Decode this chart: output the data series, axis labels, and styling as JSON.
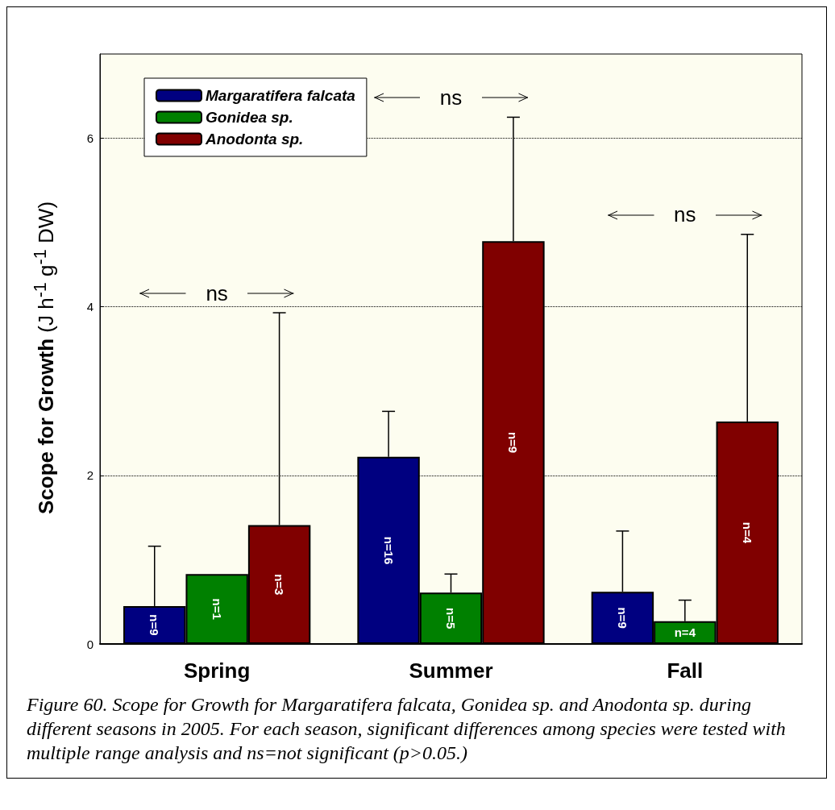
{
  "chart_data": {
    "type": "bar",
    "ylabel": "Scope for Growth (J h$^{-1}$ g$^{-1}$ DW)",
    "categories": [
      "Spring",
      "Summer",
      "Fall"
    ],
    "series": [
      {
        "name": "Margaratifera falcata",
        "color": "#000080",
        "values": [
          0.45,
          2.22,
          0.62
        ],
        "errors": [
          [
            0.45,
            1.16
          ],
          [
            2.22,
            2.76
          ],
          [
            0.62,
            1.34
          ]
        ]
      },
      {
        "name": "Gonidea sp.",
        "color": "#008000",
        "values": [
          0.83,
          0.61,
          0.27
        ],
        "errors": [
          null,
          [
            0.61,
            0.83
          ],
          [
            0.27,
            0.52
          ]
        ]
      },
      {
        "name": "Anodonta sp.",
        "color": "#800000",
        "values": [
          1.41,
          4.78,
          2.64
        ],
        "errors": [
          [
            1.41,
            3.93
          ],
          [
            4.78,
            6.25
          ],
          [
            2.64,
            4.86
          ]
        ]
      }
    ],
    "ylim": [
      0,
      7
    ],
    "yticks": [
      0,
      2,
      4,
      6
    ],
    "grid": "y",
    "legend": "top left",
    "annotations": [
      "ns",
      "ns",
      "ns",
      "n=9",
      "n=16",
      "n=9",
      "n=1",
      "n=5",
      "n=4",
      "n=3",
      "n=9",
      "n=4",
      "Figure 60. Scope for Growth for Margaratifera falcata, Gonidea sp. and Anodonta sp. during different seasons in 2005. For each season, significant differences among species were tested with multiple range analysis and  ns=not significant (p>0.05.)"
    ]
  }
}
